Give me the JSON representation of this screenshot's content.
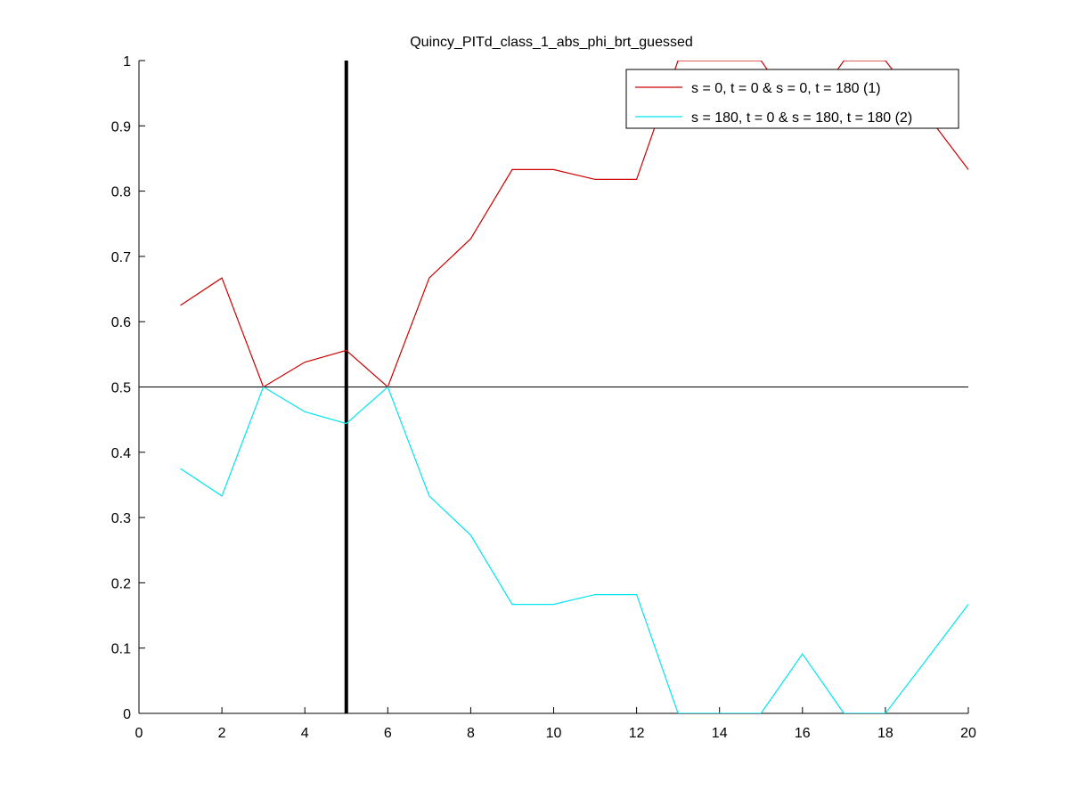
{
  "chart_data": {
    "type": "line",
    "title": "Quincy_PITd_class_1_abs_phi_brt_guessed",
    "xlabel": "",
    "ylabel": "",
    "xlim": [
      0,
      20
    ],
    "ylim": [
      0,
      1
    ],
    "x_ticks": [
      0,
      2,
      4,
      6,
      8,
      10,
      12,
      14,
      16,
      18,
      20
    ],
    "x_tick_labels": [
      "0",
      "2",
      "4",
      "6",
      "8",
      "10",
      "12",
      "14",
      "16",
      "18",
      "20"
    ],
    "y_ticks": [
      0,
      0.1,
      0.2,
      0.3,
      0.4,
      0.5,
      0.6,
      0.7,
      0.8,
      0.9,
      1
    ],
    "y_tick_labels": [
      "0",
      "0.1",
      "0.2",
      "0.3",
      "0.4",
      "0.5",
      "0.6",
      "0.7",
      "0.8",
      "0.9",
      "1"
    ],
    "grid": false,
    "legend_position": "top-right",
    "x": [
      1,
      2,
      3,
      4,
      5,
      6,
      7,
      8,
      9,
      10,
      11,
      12,
      13,
      14,
      15,
      16,
      17,
      18,
      19,
      20
    ],
    "series": [
      {
        "name": "s = 0, t = 0 & s = 0, t = 180 (1)",
        "color": "#cc0000",
        "values": [
          0.625,
          0.667,
          0.5,
          0.538,
          0.556,
          0.5,
          0.667,
          0.727,
          0.833,
          0.833,
          0.818,
          0.818,
          1.0,
          1.0,
          1.0,
          0.909,
          1.0,
          1.0,
          0.917,
          0.833
        ]
      },
      {
        "name": "s = 180, t = 0 & s = 180, t = 180 (2)",
        "color": "#00e5ee",
        "values": [
          0.375,
          0.333,
          0.5,
          0.462,
          0.444,
          0.5,
          0.333,
          0.273,
          0.167,
          0.167,
          0.182,
          0.182,
          0.0,
          0.0,
          0.0,
          0.091,
          0.0,
          0.0,
          0.083,
          0.167
        ]
      }
    ],
    "reference_lines": [
      {
        "orientation": "horizontal",
        "value": 0.5,
        "color": "#000000"
      },
      {
        "orientation": "vertical",
        "value": 5,
        "color": "#000000"
      }
    ]
  }
}
